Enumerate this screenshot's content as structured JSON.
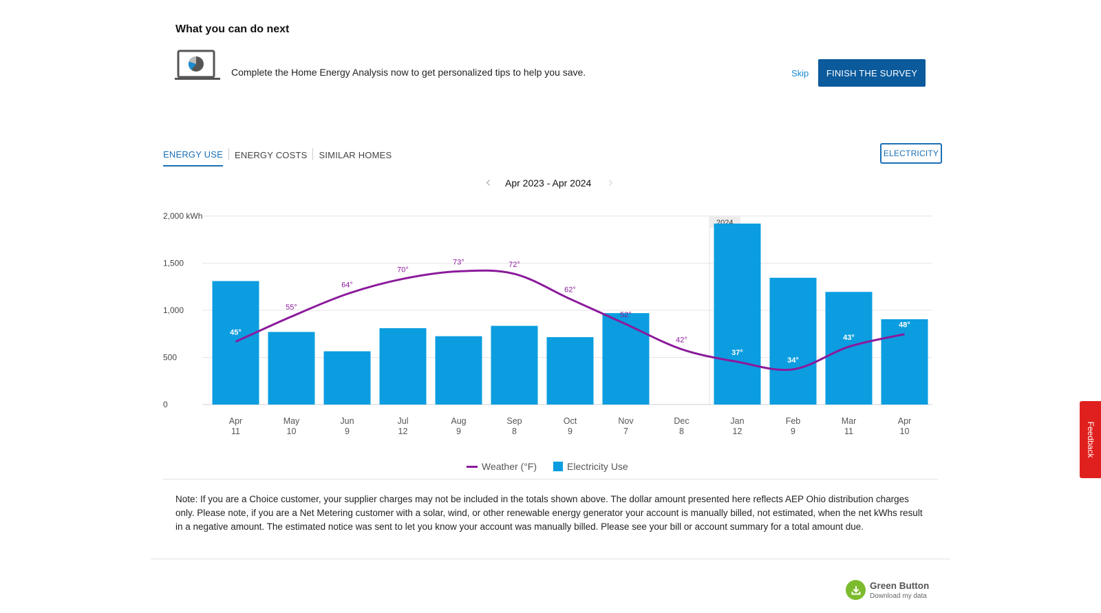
{
  "next": {
    "title": "What you can do next",
    "message": "Complete the Home Energy Analysis now to get personalized tips to help you save.",
    "skip_label": "Skip",
    "finish_label": "FINISH THE SURVEY"
  },
  "tabs": [
    {
      "label": "ENERGY USE",
      "active": true
    },
    {
      "label": "ENERGY COSTS",
      "active": false
    },
    {
      "label": "SIMILAR HOMES",
      "active": false
    }
  ],
  "fuel_button": "ELECTRICITY",
  "date_range": "Apr 2023 - Apr 2024",
  "colors": {
    "bar": "#0b9de0",
    "weather": "#8b1a9b",
    "accent": "#1a6fb5",
    "finish": "#0a5a9c",
    "feedback": "#e0201e",
    "green_button": "#7dbb2e"
  },
  "chart_data": {
    "type": "bar",
    "unit": "kWh",
    "categories": [
      "Apr",
      "May",
      "Jun",
      "Jul",
      "Aug",
      "Sep",
      "Oct",
      "Nov",
      "Dec",
      "Jan",
      "Feb",
      "Mar",
      "Apr"
    ],
    "days": [
      "11",
      "10",
      "9",
      "12",
      "9",
      "8",
      "9",
      "7",
      "8",
      "12",
      "9",
      "11",
      "10"
    ],
    "y_ticks": [
      "0",
      "500",
      "1,000",
      "1,500",
      "2,000 kWh"
    ],
    "ylim": [
      0,
      2000
    ],
    "year_marker": {
      "label": "2024",
      "before_index": 9
    },
    "series": [
      {
        "name": "Electricity Use",
        "type": "bar",
        "values": [
          1310,
          770,
          565,
          810,
          725,
          835,
          715,
          970,
          null,
          1920,
          1345,
          1195,
          905
        ]
      },
      {
        "name": "Weather (°F)",
        "type": "line",
        "values": [
          45,
          55,
          64,
          70,
          73,
          72,
          62,
          52,
          42,
          37,
          34,
          43,
          48
        ],
        "labels": [
          "45°",
          "55°",
          "64°",
          "70°",
          "73°",
          "72°",
          "62°",
          "52°",
          "42°",
          "37°",
          "34°",
          "43°",
          "48°"
        ]
      }
    ],
    "legend_position": "bottom-center",
    "grid": true
  },
  "note": "Note: If you are a Choice customer, your supplier charges may not be included in the totals shown above. The dollar amount presented here reflects AEP Ohio distribution charges only. Please note, if you are a Net Metering customer with a solar, wind, or other renewable energy generator your account is manually billed, not estimated, when the net kWhs result in a negative amount. The estimated notice was sent to let you know your account was manually billed. Please see your bill or account summary for a total amount due.",
  "green_button": {
    "title": "Green Button",
    "subtitle": "Download my data",
    "icon": "download-icon"
  },
  "feedback_label": "Feedback"
}
